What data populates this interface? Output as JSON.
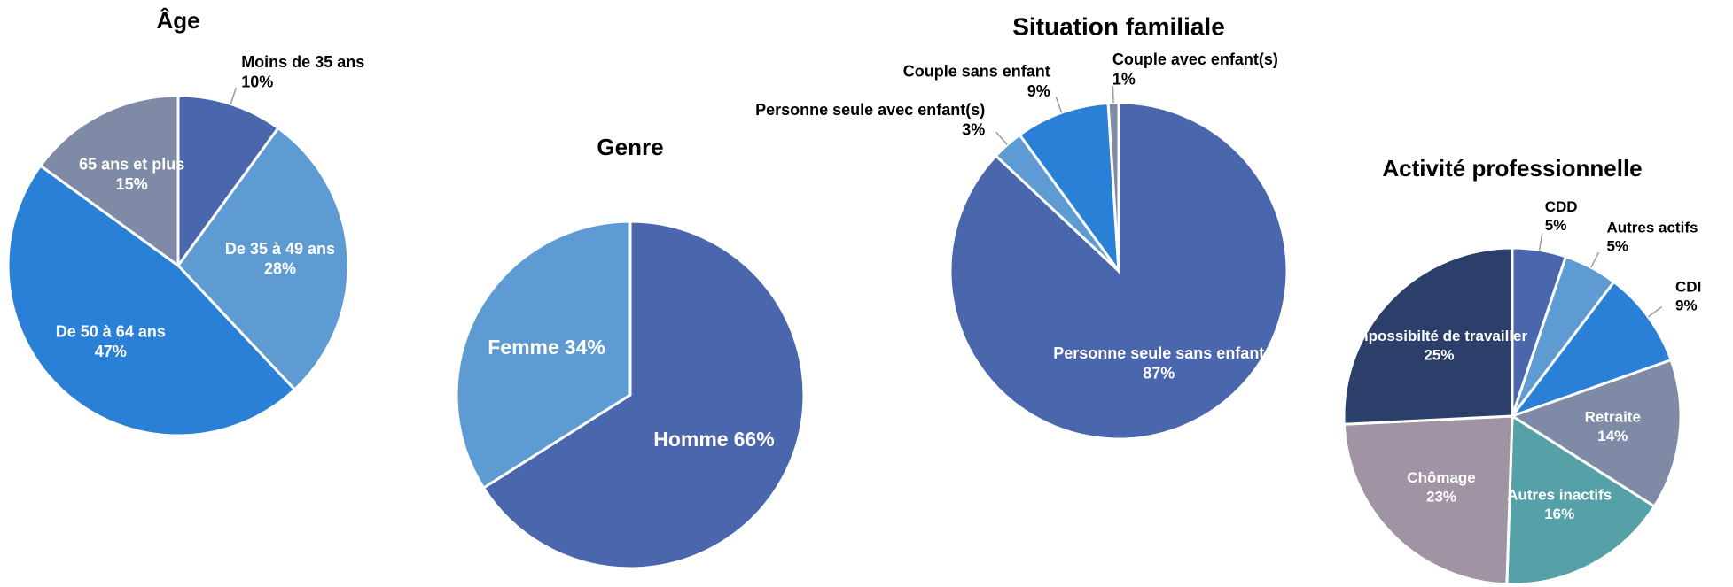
{
  "chart_data": [
    {
      "type": "pie",
      "title": "Âge",
      "categories": [
        "Moins de 35 ans",
        "De 35 à 49 ans",
        "De 50 à 64 ans",
        "65 ans et plus"
      ],
      "values": [
        10,
        28,
        47,
        15
      ],
      "value_labels": [
        "10%",
        "28%",
        "47%",
        "15%"
      ],
      "colors": [
        "#4a66ad",
        "#5f9bd3",
        "#2a7fd6",
        "#7f8ba6"
      ]
    },
    {
      "type": "pie",
      "title": "Genre",
      "categories": [
        "Homme",
        "Femme"
      ],
      "values": [
        66,
        34
      ],
      "value_labels": [
        "66%",
        "34%"
      ],
      "colors": [
        "#4a66ad",
        "#5f9bd3"
      ]
    },
    {
      "type": "pie",
      "title": "Situation familiale",
      "categories": [
        "Personne seule sans enfant",
        "Personne seule avec enfant(s)",
        "Couple sans enfant",
        "Couple avec enfant(s)"
      ],
      "values": [
        87,
        3,
        9,
        1
      ],
      "value_labels": [
        "87%",
        "3%",
        "9%",
        "1%"
      ],
      "colors": [
        "#4a66ad",
        "#5f9bd3",
        "#2a7fd6",
        "#7f8ba6"
      ]
    },
    {
      "type": "pie",
      "title": "Activité professionnelle",
      "categories": [
        "CDD",
        "Autres actifs",
        "CDI",
        "Retraite",
        "Autres inactifs",
        "Chômage",
        "Impossibilté de travailler"
      ],
      "values": [
        5,
        5,
        9,
        14,
        16,
        23,
        25
      ],
      "value_labels": [
        "5%",
        "5%",
        "9%",
        "14%",
        "16%",
        "23%",
        "25%"
      ],
      "colors": [
        "#4a66ad",
        "#5f9bd3",
        "#2a7fd6",
        "#7f8ba6",
        "#56a0a8",
        "#a093a3",
        "#2c3e6a"
      ]
    }
  ]
}
